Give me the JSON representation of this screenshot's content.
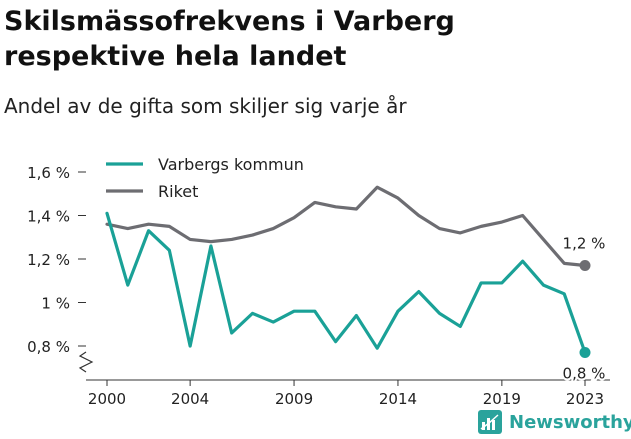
{
  "header": {
    "title": "Skilsmässofrekvens i Varberg respektive hela landet",
    "subtitle": "Andel av de gifta som skiljer sig varje år"
  },
  "brand": {
    "name": "Newsworthy"
  },
  "chart_data": {
    "type": "line",
    "title": "Skilsmässofrekvens i Varberg respektive hela landet",
    "subtitle": "Andel av de gifta som skiljer sig varje år",
    "xlabel": "",
    "ylabel": "",
    "x": [
      2000,
      2001,
      2002,
      2003,
      2004,
      2005,
      2006,
      2007,
      2008,
      2009,
      2010,
      2011,
      2012,
      2013,
      2014,
      2015,
      2016,
      2017,
      2018,
      2019,
      2020,
      2021,
      2022,
      2023
    ],
    "x_ticks": [
      2000,
      2004,
      2009,
      2014,
      2019,
      2023
    ],
    "x_tick_labels": [
      "2000",
      "2004",
      "2009",
      "2014",
      "2019",
      "2023"
    ],
    "y_ticks": [
      0.8,
      1.0,
      1.2,
      1.4,
      1.6
    ],
    "y_tick_labels": [
      "0,8 %",
      "1 %",
      "1,2 %",
      "1,4 %",
      "1,6 %"
    ],
    "ylim": [
      0.8,
      1.6
    ],
    "y_axis_break": true,
    "grid": false,
    "legend_position": "top-left",
    "series": [
      {
        "name": "Varbergs kommun",
        "color": "#1aa197",
        "values": [
          1.41,
          1.08,
          1.33,
          1.24,
          0.8,
          1.26,
          0.86,
          0.95,
          0.91,
          0.96,
          0.96,
          0.82,
          0.94,
          0.79,
          0.96,
          1.05,
          0.95,
          0.89,
          1.09,
          1.09,
          1.19,
          1.08,
          1.04,
          0.77
        ],
        "end_label": "0,8 %"
      },
      {
        "name": "Riket",
        "color": "#6d6d72",
        "values": [
          1.36,
          1.34,
          1.36,
          1.35,
          1.29,
          1.28,
          1.29,
          1.31,
          1.34,
          1.39,
          1.46,
          1.44,
          1.43,
          1.53,
          1.48,
          1.4,
          1.34,
          1.32,
          1.35,
          1.37,
          1.4,
          1.29,
          1.18,
          1.17
        ],
        "end_label": "1,2 %"
      }
    ]
  }
}
